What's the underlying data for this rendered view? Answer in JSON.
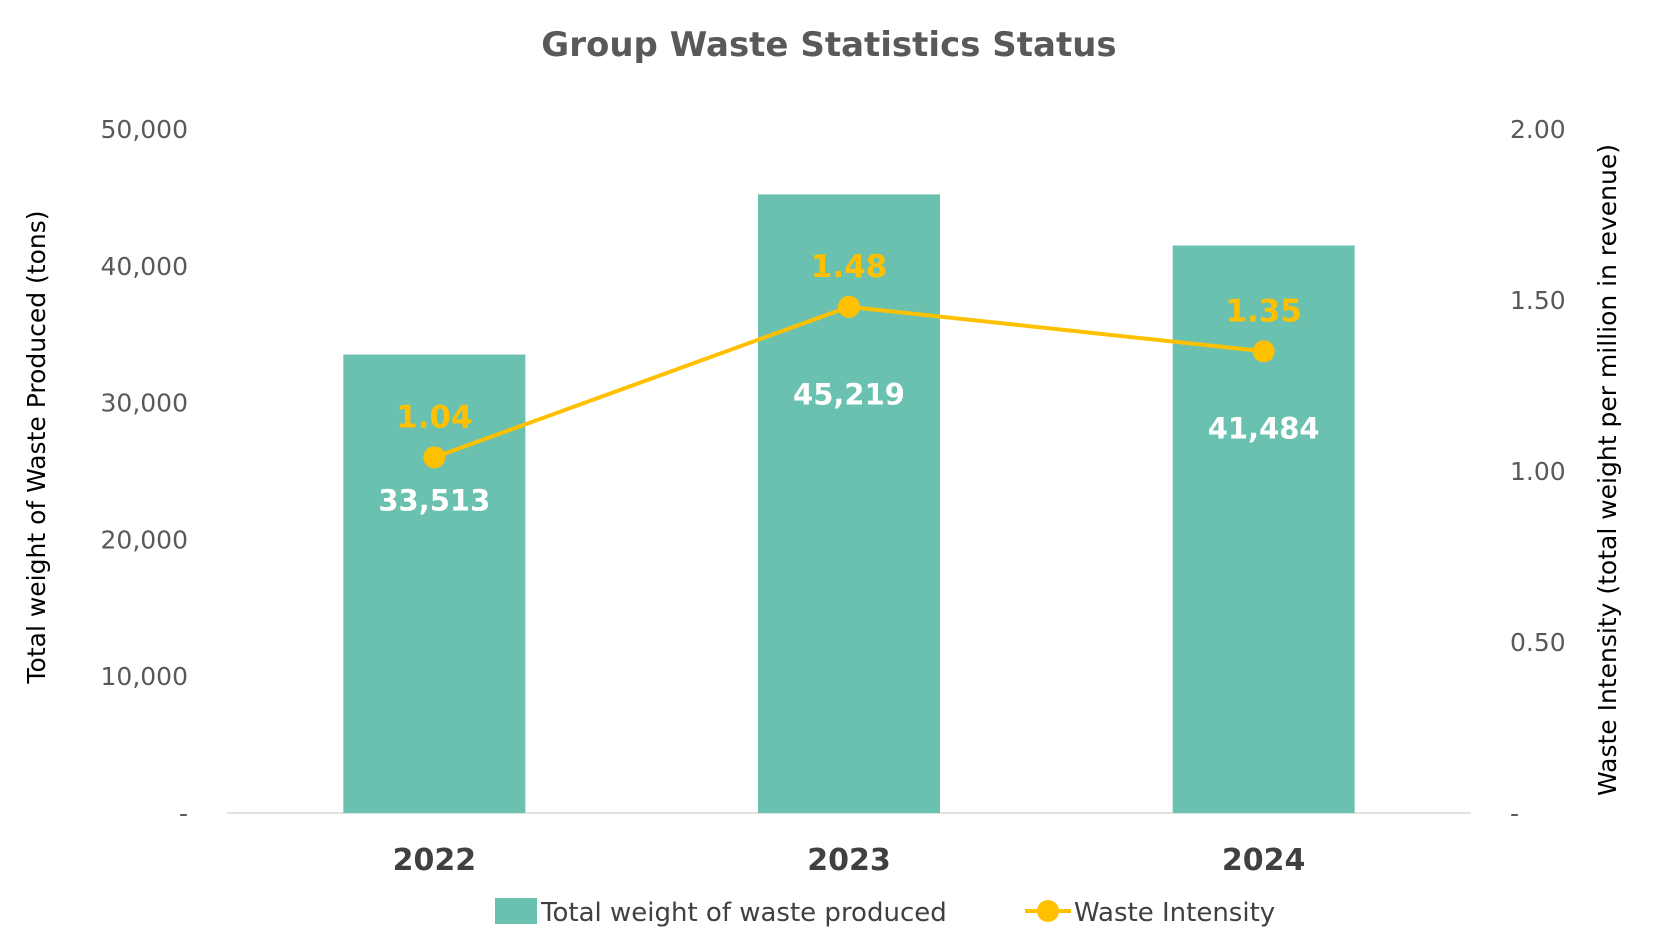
{
  "chart_data": {
    "type": "bar",
    "title": "Group Waste Statistics Status",
    "categories": [
      "2022",
      "2023",
      "2024"
    ],
    "ylabel": "Total weight of Waste Produced (tons)",
    "y2label": "Waste Intensity (total weight per million in revenue)",
    "ylim": [
      0,
      50000
    ],
    "y2lim": [
      0,
      2.0
    ],
    "yticks": [
      "-",
      "10,000",
      "20,000",
      "30,000",
      "40,000",
      "50,000"
    ],
    "y2ticks": [
      "-",
      "0.50",
      "1.00",
      "1.50",
      "2.00"
    ],
    "grid": false,
    "legend_position": "bottom",
    "series": [
      {
        "name": "Total weight of waste produced",
        "type": "bar",
        "axis": "left",
        "color": "#6AC1B0",
        "values": [
          33513,
          45219,
          41484
        ],
        "labels": [
          "33,513",
          "45,219",
          "41,484"
        ]
      },
      {
        "name": "Waste Intensity",
        "type": "line",
        "axis": "right",
        "color": "#FFC000",
        "values": [
          1.04,
          1.48,
          1.35
        ],
        "labels": [
          "1.04",
          "1.48",
          "1.35"
        ]
      }
    ]
  }
}
